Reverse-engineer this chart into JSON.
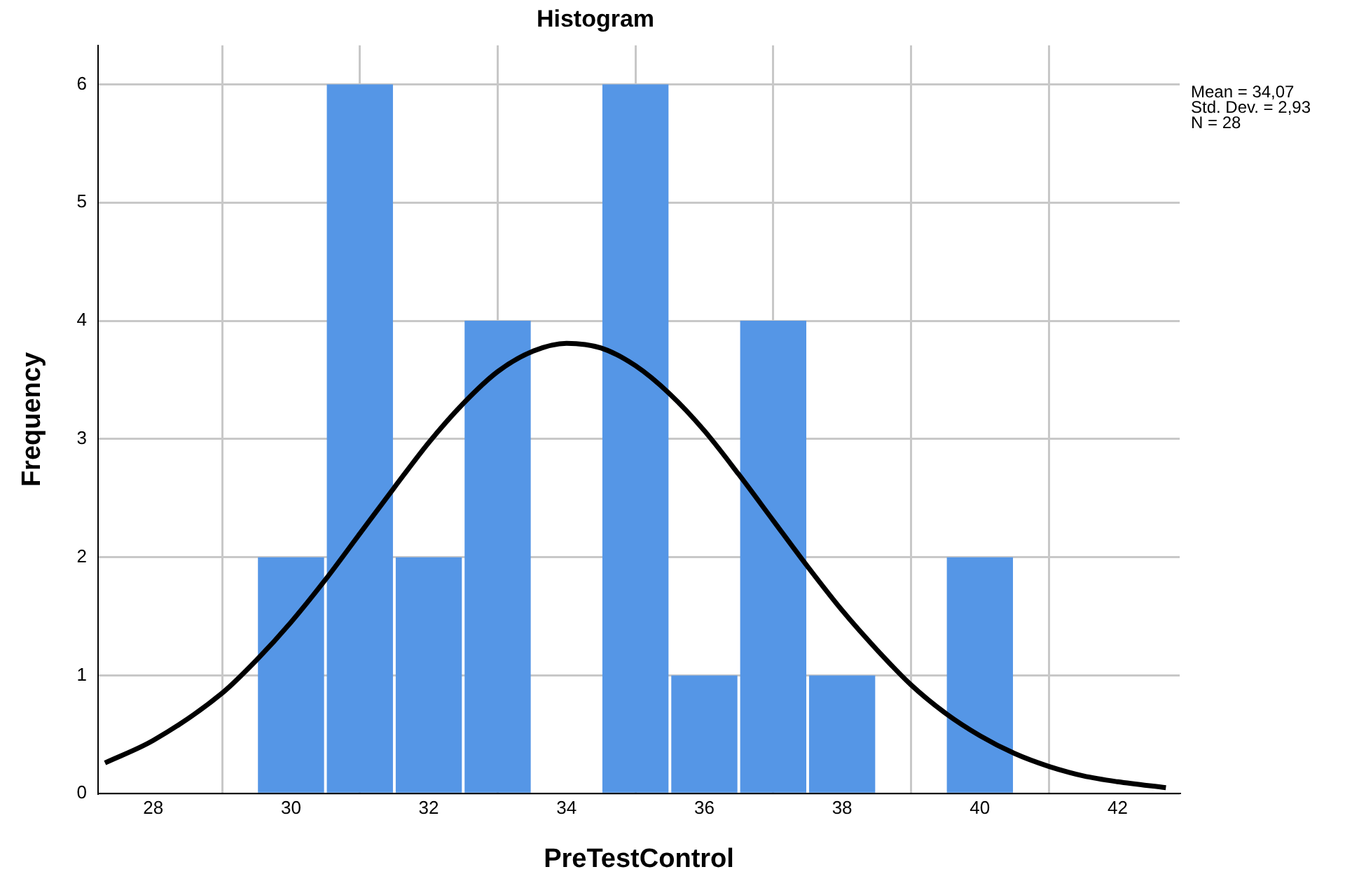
{
  "chart_data": {
    "type": "histogram",
    "title": "Histogram",
    "xlabel": "PreTestControl",
    "ylabel": "Frequency",
    "xlim": [
      27.2,
      42.9
    ],
    "xticks": [
      28,
      30,
      32,
      34,
      36,
      38,
      40,
      42
    ],
    "ylim": [
      0,
      6.33
    ],
    "yticks": [
      0,
      1,
      2,
      3,
      4,
      5,
      6
    ],
    "grid": true,
    "marker": "none",
    "annotations": [
      "Mean = 34,07",
      "Std. Dev. = 2,93",
      "N = 28"
    ],
    "series": [
      {
        "type": "histogram",
        "color": "#5596e6",
        "bins": [
          29.5,
          30.5,
          31.5,
          32.5,
          33.5,
          34.5,
          35.5,
          36.5,
          37.5,
          38.5,
          39.5,
          40.5
        ],
        "values": [
          2,
          6,
          2,
          4,
          0,
          6,
          1,
          4,
          1,
          0,
          2
        ]
      },
      {
        "type": "line",
        "color": "#000000",
        "x": [
          27.3,
          28,
          29,
          29.5,
          30,
          30.5,
          31,
          31.5,
          32,
          32.5,
          33,
          33.5,
          34,
          34.5,
          35,
          35.5,
          36,
          36.5,
          37,
          37.5,
          38,
          38.5,
          39,
          39.5,
          40,
          40.5,
          41,
          41.5,
          42,
          42.7
        ],
        "values": [
          0.26,
          0.45,
          0.85,
          1.13,
          1.45,
          1.81,
          2.2,
          2.59,
          2.97,
          3.3,
          3.57,
          3.74,
          3.81,
          3.77,
          3.62,
          3.38,
          3.07,
          2.7,
          2.31,
          1.92,
          1.55,
          1.22,
          0.92,
          0.68,
          0.49,
          0.34,
          0.23,
          0.15,
          0.1,
          0.05
        ]
      }
    ]
  }
}
